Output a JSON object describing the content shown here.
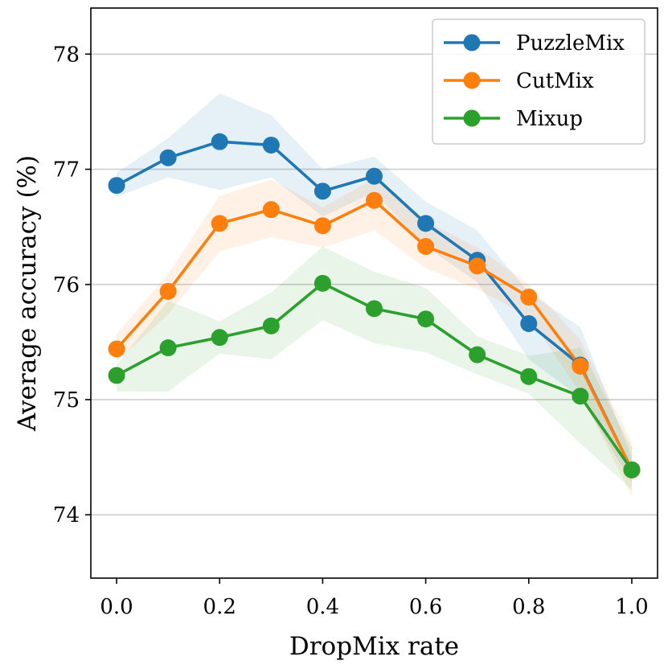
{
  "chart_data": {
    "type": "line",
    "xlabel": "DropMix rate",
    "ylabel": "Average accuracy (%)",
    "xlim": [
      -0.05,
      1.05
    ],
    "ylim": [
      73.45,
      78.4
    ],
    "x_ticks": [
      0.0,
      0.2,
      0.4,
      0.6,
      0.8,
      1.0
    ],
    "x_tick_labels": [
      "0.0",
      "0.2",
      "0.4",
      "0.6",
      "0.8",
      "1.0"
    ],
    "y_ticks": [
      74,
      75,
      76,
      77,
      78
    ],
    "y_tick_labels": [
      "74",
      "75",
      "76",
      "77",
      "78"
    ],
    "grid": "horizontal",
    "legend_position": "top-right",
    "x": [
      0.0,
      0.1,
      0.2,
      0.3,
      0.4,
      0.5,
      0.6,
      0.7,
      0.8,
      0.9,
      1.0
    ],
    "series": [
      {
        "name": "PuzzleMix",
        "color": "#1f77b4",
        "values": [
          76.86,
          77.1,
          77.24,
          77.21,
          76.81,
          76.94,
          76.53,
          76.21,
          75.66,
          75.3,
          74.39
        ],
        "lower": [
          76.76,
          76.93,
          76.82,
          76.93,
          76.59,
          76.8,
          76.33,
          76.02,
          75.35,
          75.02,
          74.28
        ],
        "upper": [
          76.97,
          77.27,
          77.66,
          77.47,
          77.0,
          77.11,
          76.72,
          76.47,
          75.93,
          75.63,
          74.5
        ]
      },
      {
        "name": "CutMix",
        "color": "#ff7f0e",
        "values": [
          75.44,
          75.94,
          76.53,
          76.65,
          76.51,
          76.73,
          76.33,
          76.16,
          75.89,
          75.29,
          74.39
        ],
        "lower": [
          75.33,
          75.74,
          76.29,
          76.41,
          76.32,
          76.47,
          76.14,
          75.96,
          75.72,
          75.06,
          74.16
        ],
        "upper": [
          75.57,
          76.09,
          76.77,
          76.91,
          76.67,
          76.92,
          76.55,
          76.32,
          76.0,
          75.52,
          74.63
        ]
      },
      {
        "name": "Mixup",
        "color": "#2ca02c",
        "values": [
          75.21,
          75.45,
          75.54,
          75.64,
          76.01,
          75.79,
          75.7,
          75.39,
          75.2,
          75.03,
          74.39
        ],
        "lower": [
          75.07,
          75.07,
          75.4,
          75.35,
          75.69,
          75.49,
          75.41,
          75.22,
          75.05,
          74.62,
          74.22
        ],
        "upper": [
          75.3,
          75.86,
          75.68,
          75.93,
          76.33,
          76.11,
          75.97,
          75.55,
          75.38,
          75.45,
          74.58
        ]
      }
    ]
  }
}
